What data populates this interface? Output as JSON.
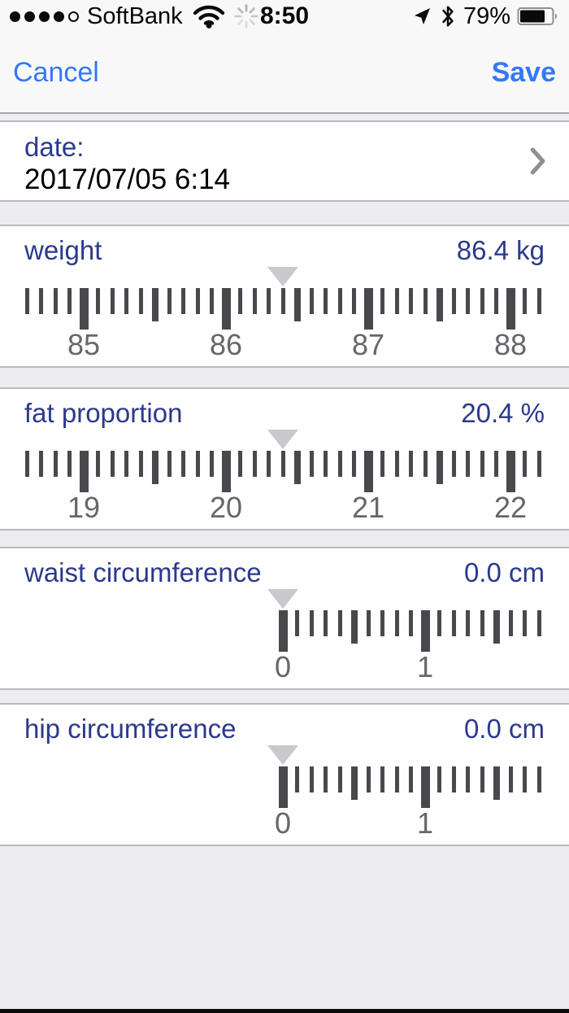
{
  "status_bar": {
    "carrier": "SoftBank",
    "time": "8:50",
    "battery_percent": "79%",
    "signal": {
      "filled_dots": 4,
      "total_dots": 5
    },
    "icons": [
      "wifi-icon",
      "spinner-icon",
      "location-icon",
      "bluetooth-icon",
      "battery-icon"
    ],
    "battery_level": 0.79
  },
  "nav_bar": {
    "cancel_label": "Cancel",
    "save_label": "Save"
  },
  "date_row": {
    "label": "date:",
    "value": "2017/07/05 6:14"
  },
  "sections": [
    {
      "label": "weight",
      "display_value": "86.4 kg",
      "ruler": {
        "min": 84.6,
        "max": 88.2,
        "step": 0.1,
        "center_value": 86.4,
        "labeled_values": [
          85,
          86,
          87,
          88
        ]
      }
    },
    {
      "label": "fat proportion",
      "display_value": "20.4 %",
      "ruler": {
        "min": 18.6,
        "max": 22.2,
        "step": 0.1,
        "center_value": 20.4,
        "labeled_values": [
          19,
          20,
          21,
          22
        ]
      }
    },
    {
      "label": "waist circumference",
      "display_value": "0.0 cm",
      "ruler": {
        "min": 0.0,
        "max": 1.8,
        "step": 0.1,
        "center_value": 0.0,
        "labeled_values": [
          0,
          1
        ]
      }
    },
    {
      "label": "hip circumference",
      "display_value": "0.0 cm",
      "ruler": {
        "min": 0.0,
        "max": 1.8,
        "step": 0.1,
        "center_value": 0.0,
        "labeled_values": [
          0,
          1
        ]
      }
    }
  ],
  "colors": {
    "accent_blue": "#3478f6",
    "label_navy": "#2b3a8c",
    "tick_gray": "#48484d",
    "ruler_label_gray": "#66666b",
    "pointer_gray": "#c8c8cd",
    "bar_bg": "#f8f8f8",
    "page_bg": "#ececf1",
    "card_bg": "#fefefe",
    "card_border": "#b9b9be"
  }
}
